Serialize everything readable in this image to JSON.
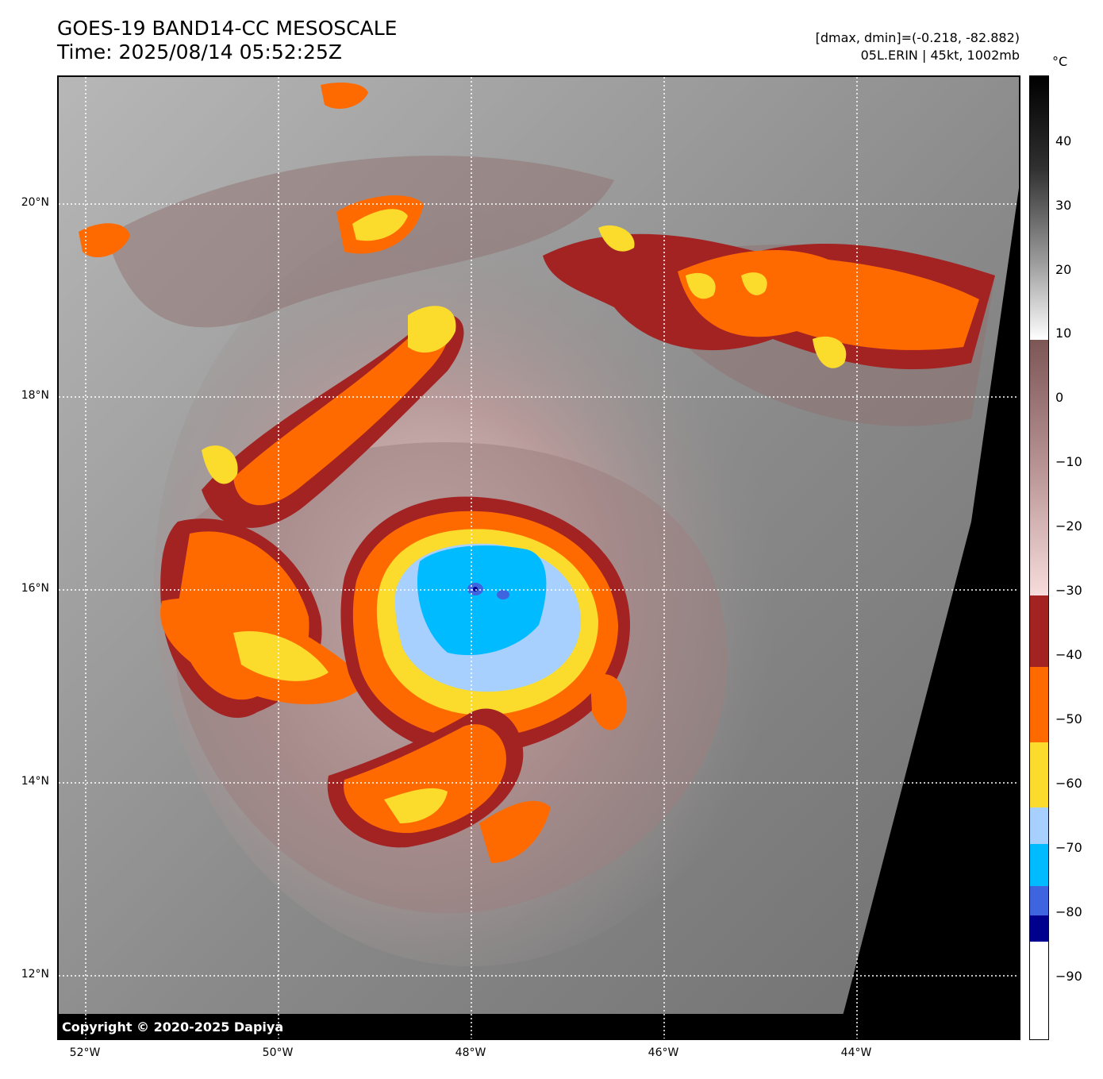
{
  "header": {
    "title": "GOES-19 BAND14-CC MESOSCALE",
    "time": "Time: 2025/08/14 05:52:25Z",
    "dmax_dmin": "[dmax, dmin]=(-0.218, -82.882)",
    "storm": "05L.ERIN | 45kt, 1002mb"
  },
  "map": {
    "lat_labels": [
      "20°N",
      "18°N",
      "16°N",
      "14°N",
      "12°N"
    ],
    "lon_labels": [
      "52°W",
      "50°W",
      "48°W",
      "46°W",
      "44°W"
    ],
    "storm_center": {
      "lat": 15.9,
      "lon": -48.0
    },
    "copyright": "Copyright © 2020-2025 Dapiya"
  },
  "colorbar": {
    "unit": "°C",
    "ticks": [
      "40",
      "30",
      "20",
      "10",
      "0",
      "−10",
      "−20",
      "−30",
      "−40",
      "−50",
      "−60",
      "−70",
      "−80",
      "−90"
    ],
    "colors": {
      "cold_black": "#000000",
      "white": "#ffffff",
      "pink": "#f7dcdc",
      "brown": "#7d5656",
      "dark_red": "#a32323",
      "orange": "#ff6a00",
      "yellow": "#fbdb2b",
      "light_blue": "#a7d0ff",
      "cyan": "#00bbff",
      "blue": "#3f64e0",
      "navy": "#00008f"
    }
  }
}
